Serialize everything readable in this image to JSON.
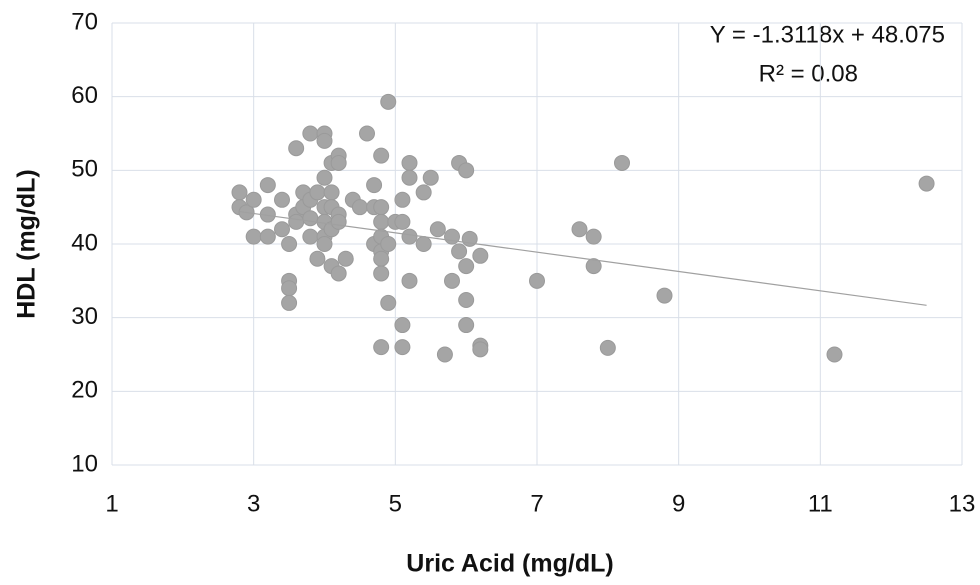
{
  "chart_data": {
    "type": "scatter",
    "x_label": "Uric Acid (mg/dL)",
    "y_label": "HDL (mg/dL)",
    "annotations": [
      "Y = -1.3118x + 48.075",
      "R² = 0.08"
    ],
    "trendline": {
      "slope": -1.3118,
      "intercept": 48.075
    },
    "color": "#a5a5a5",
    "grid": true,
    "xlim": [
      1,
      13
    ],
    "xticks": [
      1,
      3,
      5,
      7,
      9,
      11,
      13
    ],
    "ylim": [
      10,
      70
    ],
    "yticks": [
      10,
      20,
      30,
      40,
      50,
      60,
      70
    ],
    "x": [
      2.8,
      2.8,
      2.9,
      3.0,
      3.0,
      3.2,
      3.2,
      3.2,
      3.4,
      3.4,
      3.5,
      3.5,
      3.5,
      3.5,
      3.6,
      3.6,
      3.6,
      3.7,
      3.7,
      3.8,
      3.8,
      3.8,
      3.8,
      3.9,
      3.9,
      4.0,
      4.0,
      4.0,
      4.0,
      4.0,
      4.0,
      4.0,
      4.1,
      4.1,
      4.1,
      4.1,
      4.1,
      4.2,
      4.2,
      4.2,
      4.2,
      4.2,
      4.3,
      4.4,
      4.5,
      4.6,
      4.7,
      4.7,
      4.7,
      4.8,
      4.8,
      4.8,
      4.8,
      4.8,
      4.8,
      4.8,
      4.8,
      4.9,
      4.9,
      4.9,
      5.0,
      5.1,
      5.1,
      5.1,
      5.1,
      5.2,
      5.2,
      5.2,
      5.2,
      5.4,
      5.4,
      5.5,
      5.6,
      5.7,
      5.8,
      5.8,
      5.9,
      5.9,
      6.0,
      6.0,
      6.0,
      6.0,
      6.05,
      6.2,
      6.2,
      6.2,
      7.0,
      7.6,
      7.8,
      7.8,
      8.0,
      8.2,
      8.8,
      11.2,
      12.5
    ],
    "values": [
      47,
      45,
      44.3,
      46,
      41,
      48,
      44,
      41,
      46,
      42,
      40,
      35,
      34,
      32,
      53,
      44,
      43,
      47,
      45,
      55,
      46,
      43.5,
      41,
      47,
      38,
      55,
      54,
      49,
      45,
      43,
      41,
      40,
      51,
      47,
      45,
      42,
      37,
      52,
      51,
      44,
      43,
      36,
      38,
      46,
      45,
      55,
      48,
      45,
      40,
      52,
      45,
      43,
      41,
      39,
      38,
      36,
      26,
      59.3,
      40,
      32,
      43,
      46,
      43,
      29,
      26,
      51,
      49,
      41,
      35,
      40,
      47,
      49,
      42,
      25,
      41,
      35,
      51,
      39,
      50,
      37,
      32.4,
      29,
      40.7,
      38.4,
      26.2,
      25.7,
      35,
      42,
      41,
      37,
      25.9,
      51,
      33,
      25,
      48.2
    ]
  }
}
